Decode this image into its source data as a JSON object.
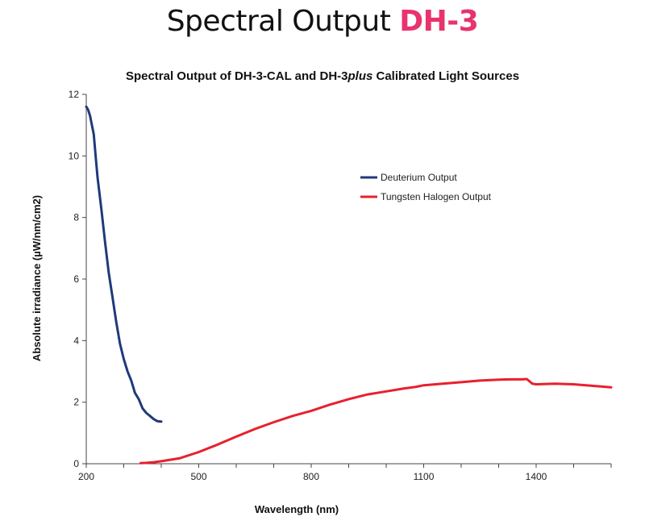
{
  "heading": {
    "dark": "Spectral Output",
    "accent": "DH-3"
  },
  "colors": {
    "accent": "#e8336e",
    "deuterium": "#1f3a7a",
    "tungsten": "#e8202e"
  },
  "chart_data": {
    "type": "line",
    "title_parts": [
      "Spectral Output of DH-3-CAL and DH-3",
      "plus",
      " Calibrated Light Sources"
    ],
    "xlabel": "Wavelength (nm)",
    "ylabel": "Absolute irradiance (µW/nm/cm2)",
    "xlim": [
      200,
      1600
    ],
    "ylim": [
      0,
      12
    ],
    "x_ticks": [
      200,
      500,
      800,
      1100,
      1400
    ],
    "y_ticks": [
      0,
      2,
      4,
      6,
      8,
      10,
      12
    ],
    "grid": false,
    "legend_position": "top-right",
    "series": [
      {
        "name": "Deuterium Output",
        "color": "#1f3a7a",
        "x": [
          200,
          205,
          210,
          215,
          220,
          225,
          230,
          240,
          250,
          260,
          270,
          280,
          290,
          300,
          310,
          320,
          330,
          340,
          350,
          360,
          370,
          380,
          390,
          400
        ],
        "y": [
          11.6,
          11.5,
          11.3,
          11.0,
          10.7,
          10.0,
          9.3,
          8.3,
          7.2,
          6.2,
          5.4,
          4.6,
          3.9,
          3.4,
          3.0,
          2.7,
          2.3,
          2.1,
          1.8,
          1.65,
          1.55,
          1.45,
          1.38,
          1.37
        ]
      },
      {
        "name": "Tungsten Halogen Output",
        "color": "#e8202e",
        "x": [
          345,
          360,
          380,
          400,
          450,
          500,
          550,
          600,
          650,
          700,
          750,
          800,
          850,
          900,
          950,
          1000,
          1050,
          1080,
          1100,
          1150,
          1200,
          1250,
          1300,
          1330,
          1360,
          1375,
          1390,
          1400,
          1450,
          1500,
          1550,
          1600
        ],
        "y": [
          0.02,
          0.03,
          0.05,
          0.08,
          0.18,
          0.38,
          0.62,
          0.88,
          1.13,
          1.35,
          1.55,
          1.72,
          1.92,
          2.1,
          2.25,
          2.35,
          2.45,
          2.5,
          2.55,
          2.6,
          2.65,
          2.7,
          2.73,
          2.74,
          2.74,
          2.75,
          2.6,
          2.58,
          2.6,
          2.58,
          2.53,
          2.48
        ]
      }
    ]
  }
}
